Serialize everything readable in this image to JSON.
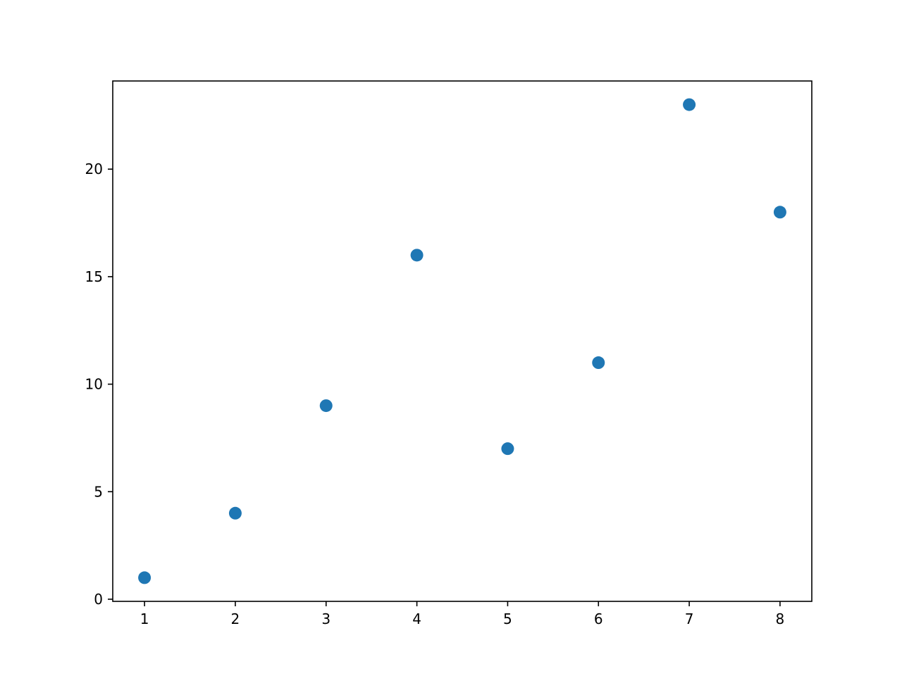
{
  "chart_data": {
    "type": "scatter",
    "title": "",
    "xlabel": "",
    "ylabel": "",
    "x": [
      1,
      2,
      3,
      4,
      5,
      6,
      7,
      8
    ],
    "y": [
      1,
      4,
      9,
      16,
      7,
      11,
      23,
      18
    ],
    "xlim": [
      0.65,
      8.35
    ],
    "ylim": [
      -0.1,
      24.1
    ],
    "xticks": [
      1,
      2,
      3,
      4,
      5,
      6,
      7,
      8
    ],
    "xtick_labels": [
      "1",
      "2",
      "3",
      "4",
      "5",
      "6",
      "7",
      "8"
    ],
    "yticks": [
      0,
      5,
      10,
      15,
      20
    ],
    "ytick_labels": [
      "0",
      "5",
      "10",
      "15",
      "20"
    ],
    "grid": false,
    "marker_color": "#1f77b4"
  }
}
